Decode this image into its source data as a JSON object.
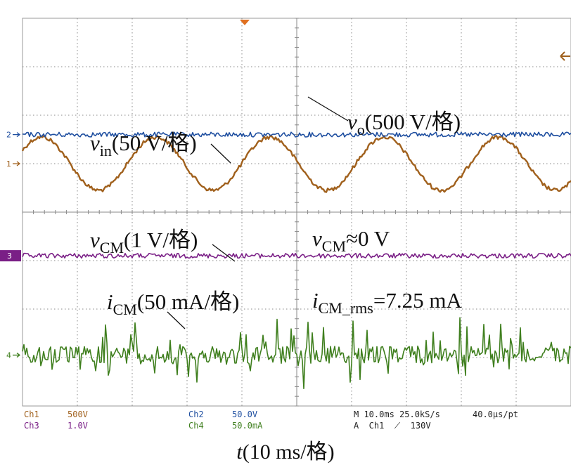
{
  "chart_data": {
    "type": "line",
    "title": "",
    "xlabel": {
      "var": "t",
      "text": "(10 ms/格)"
    },
    "x_divisions": 10,
    "y_divisions": 8,
    "series": [
      {
        "channel": "Ch1",
        "name": "vo",
        "marker": "1",
        "color": "#a0601c",
        "kind": "sine",
        "cycles": 4.8,
        "phase_deg": 30,
        "level_div": 1.0,
        "amplitude_div": 0.55,
        "noise_div": 0.04
      },
      {
        "channel": "Ch2",
        "name": "vin",
        "marker": "2",
        "color": "#1f4fa0",
        "kind": "dc",
        "level_div": 1.6,
        "noise_div": 0.05
      },
      {
        "channel": "Ch3",
        "name": "vCM",
        "marker": "3",
        "color": "#7a1f86",
        "kind": "dc",
        "level_div": -0.9,
        "noise_div": 0.05
      },
      {
        "channel": "Ch4",
        "name": "iCM",
        "marker": "4",
        "color": "#3f7f1e",
        "kind": "spiky",
        "level_div": -2.95,
        "noise_div": 0.18,
        "spike_div": 0.9
      }
    ],
    "annotations": {
      "vo": {
        "var": "v",
        "sub": "o",
        "text": "(500 V/格)"
      },
      "vin": {
        "var": "v",
        "sub": "in",
        "text": "(50 V/格)"
      },
      "vcm": {
        "var": "v",
        "sub": "CM",
        "text": "(1 V/格)"
      },
      "icm": {
        "var": "i",
        "sub": "CM",
        "text": "(50 mA/格)"
      },
      "vcm_value": {
        "var": "v",
        "sub": "CM",
        "text": "≈0 V"
      },
      "icm_rms": {
        "var": "i",
        "sub": "CM_rms",
        "text": "=7.25 mA"
      }
    },
    "settings": {
      "ch1": {
        "label": "Ch1",
        "scale": "500V"
      },
      "ch2": {
        "label": "Ch2",
        "scale": "50.0V"
      },
      "ch3": {
        "label": "Ch3",
        "scale": "1.0V"
      },
      "ch4": {
        "label": "Ch4",
        "scale": "50.0mA"
      },
      "timebase": "M 10.0ms 25.0kS/s",
      "resolution": "40.0μs/pt",
      "trigger": "A  Ch1  ⟋  130V"
    }
  }
}
